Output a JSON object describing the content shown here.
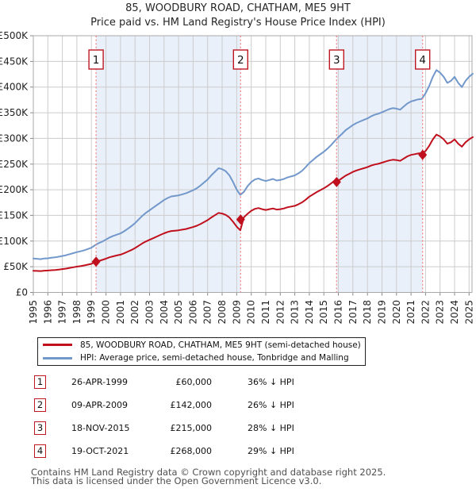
{
  "header": {
    "title": "85, WOODBURY ROAD, CHATHAM, ME5 9HT",
    "subtitle": "Price paid vs. HM Land Registry's House Price Index (HPI)"
  },
  "chart_data": {
    "type": "line",
    "title": "85, WOODBURY ROAD, CHATHAM, ME5 9HT",
    "subtitle": "Price paid vs. HM Land Registry's House Price Index (HPI)",
    "xlim": [
      1995,
      2025.2
    ],
    "ylim": [
      0,
      500000
    ],
    "grid": true,
    "legend_position": "below",
    "x_ticks": [
      "1995",
      "1996",
      "1997",
      "1998",
      "1999",
      "2000",
      "2001",
      "2002",
      "2003",
      "2004",
      "2005",
      "2006",
      "2007",
      "2008",
      "2009",
      "2010",
      "2011",
      "2012",
      "2013",
      "2014",
      "2015",
      "2016",
      "2017",
      "2018",
      "2019",
      "2020",
      "2021",
      "2022",
      "2023",
      "2024",
      "2025"
    ],
    "y_ticks": [
      0,
      50000,
      100000,
      150000,
      200000,
      250000,
      300000,
      350000,
      400000,
      450000,
      500000
    ],
    "y_tick_labels": [
      "£0",
      "£50K",
      "£100K",
      "£150K",
      "£200K",
      "£250K",
      "£300K",
      "£350K",
      "£400K",
      "£450K",
      "£500K"
    ],
    "colors": {
      "grid": "#cccccc",
      "border": "#a8a8a8",
      "band": "#eaf0fa",
      "event_line": "#f07f7f",
      "badge_border": "#bf1722",
      "tick": "#888888"
    },
    "ownership_bands": [
      [
        1999.32,
        2009.27
      ],
      [
        2015.88,
        2021.8
      ]
    ],
    "series": [
      {
        "name": "85, WOODBURY ROAD, CHATHAM, ME5 9HT (semi-detached house)",
        "data_name": "price-paid-line",
        "color": "#c00f1d",
        "x_start": 1995.0,
        "x_step": 0.25,
        "values_gbp": [
          42200,
          41900,
          41500,
          42400,
          42600,
          43200,
          43700,
          44500,
          45400,
          46400,
          47700,
          49000,
          50200,
          51200,
          52500,
          54100,
          55700,
          58900,
          61400,
          63400,
          65900,
          68500,
          70400,
          72000,
          73600,
          76200,
          79400,
          82600,
          86400,
          90900,
          95400,
          99200,
          102400,
          105600,
          108800,
          112000,
          115200,
          117800,
          119700,
          120300,
          121000,
          122200,
          123500,
          125400,
          127400,
          129900,
          133100,
          137000,
          140800,
          145900,
          150400,
          154900,
          153600,
          151000,
          145900,
          137600,
          128000,
          121000,
          146500,
          153200,
          159100,
          162800,
          164300,
          162100,
          160600,
          162100,
          163500,
          161300,
          162100,
          163500,
          165800,
          167200,
          168700,
          171700,
          175400,
          180600,
          186500,
          190900,
          195400,
          199100,
          202800,
          207200,
          212400,
          218300,
          217400,
          222500,
          227500,
          231100,
          234700,
          237600,
          239800,
          241900,
          244100,
          247000,
          249100,
          250600,
          252700,
          254900,
          257000,
          258500,
          257800,
          256300,
          260600,
          265000,
          267800,
          269300,
          270700,
          271400,
          275500,
          285400,
          298200,
          307400,
          303900,
          298200,
          289700,
          292500,
          298200,
          289700,
          284000,
          292500,
          298200,
          302500
        ]
      },
      {
        "name": "HPI: Average price, semi-detached house, Tonbridge and Malling",
        "data_name": "hpi-line",
        "color": "#7298cb",
        "x_start": 1995.0,
        "x_step": 0.25,
        "values_gbp": [
          66000,
          65500,
          64800,
          66200,
          66500,
          67500,
          68300,
          69500,
          71000,
          72500,
          74500,
          76500,
          78500,
          80000,
          82000,
          84500,
          87000,
          92000,
          96000,
          99000,
          103000,
          107000,
          110000,
          112500,
          115000,
          119000,
          124000,
          129000,
          135000,
          142000,
          149000,
          155000,
          160000,
          165000,
          170000,
          175000,
          180000,
          184000,
          187000,
          188000,
          189000,
          191000,
          193000,
          196000,
          199000,
          203000,
          208000,
          214000,
          220000,
          228000,
          235000,
          242000,
          240000,
          236000,
          228000,
          215000,
          200000,
          190000,
          196000,
          207000,
          215000,
          220000,
          222000,
          219000,
          217000,
          219000,
          221000,
          218000,
          219000,
          221000,
          224000,
          226000,
          228000,
          232000,
          237000,
          244000,
          252000,
          258000,
          264000,
          269000,
          274000,
          280000,
          287000,
          295000,
          302000,
          309000,
          316000,
          321000,
          326000,
          330000,
          333000,
          336000,
          339000,
          343000,
          346000,
          348000,
          351000,
          354000,
          357000,
          359000,
          358000,
          356000,
          362000,
          368000,
          372000,
          374000,
          376000,
          377000,
          388000,
          402000,
          420000,
          433000,
          428000,
          420000,
          408000,
          412000,
          420000,
          408000,
          400000,
          412000,
          420000,
          426000
        ]
      }
    ],
    "sale_events": [
      {
        "num": "1",
        "date_decimal": 1999.32,
        "price": 60000
      },
      {
        "num": "2",
        "date_decimal": 2009.27,
        "price": 142000
      },
      {
        "num": "3",
        "date_decimal": 2015.88,
        "price": 215000
      },
      {
        "num": "4",
        "date_decimal": 2021.8,
        "price": 268000
      }
    ]
  },
  "legend": {
    "entries": [
      {
        "label": "85, WOODBURY ROAD, CHATHAM, ME5 9HT (semi-detached house)"
      },
      {
        "label": "HPI: Average price, semi-detached house, Tonbridge and Malling"
      }
    ]
  },
  "table": {
    "rows": [
      {
        "num": "1",
        "date": "26-APR-1999",
        "price": "£60,000",
        "delta": "36% ↓ HPI"
      },
      {
        "num": "2",
        "date": "09-APR-2009",
        "price": "£142,000",
        "delta": "26% ↓ HPI"
      },
      {
        "num": "3",
        "date": "18-NOV-2015",
        "price": "£215,000",
        "delta": "28% ↓ HPI"
      },
      {
        "num": "4",
        "date": "19-OCT-2021",
        "price": "£268,000",
        "delta": "29% ↓ HPI"
      }
    ]
  },
  "footer": {
    "line1": "Contains HM Land Registry data © Crown copyright and database right 2025.",
    "line2": "This data is licensed under the Open Government Licence v3.0."
  }
}
